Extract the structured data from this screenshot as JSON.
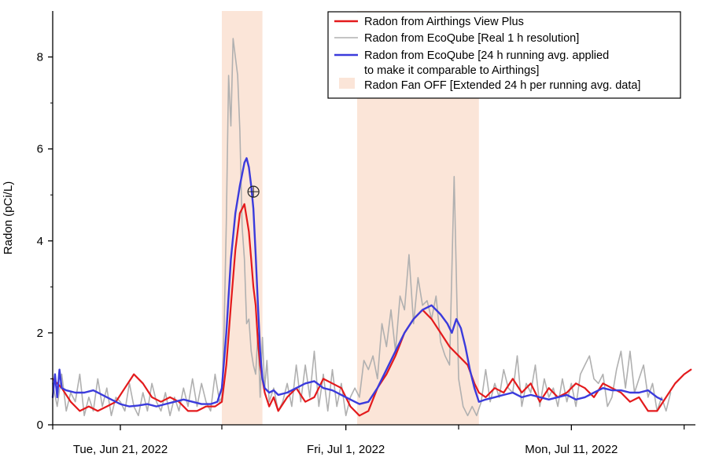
{
  "chart_data": {
    "type": "line",
    "title": "",
    "ylabel": "Radon (pCi/L)",
    "xlabel": "",
    "ylim": [
      0,
      9
    ],
    "xlim": [
      -3,
      25.5
    ],
    "x_unit": "days since Jun 21, 2022",
    "yticks": [
      0,
      2,
      4,
      6,
      8
    ],
    "xticks_major": [
      {
        "day": 0,
        "label": "Tue, Jun 21, 2022"
      },
      {
        "day": 10,
        "label": "Fri, Jul 1, 2022"
      },
      {
        "day": 20,
        "label": "Mon, Jul 11, 2022"
      }
    ],
    "xticks_minor": [
      -3,
      4.5,
      15,
      25
    ],
    "shaded_regions": [
      {
        "name": "Radon Fan OFF",
        "x_start": 4.5,
        "x_end": 6.3
      },
      {
        "name": "Radon Fan OFF",
        "x_start": 10.5,
        "x_end": 15.9
      }
    ],
    "annotation": {
      "marker": "crosshair-circle",
      "x": 5.9,
      "y": 5.07
    },
    "legend": {
      "position": "top-right",
      "entries": [
        {
          "label": "Radon from Airthings View Plus",
          "kind": "line",
          "color": "#e31a1c"
        },
        {
          "label": "Radon from EcoQube [Real 1 h resolution]",
          "kind": "line",
          "color": "#b0b0b0"
        },
        {
          "label": "Radon from EcoQube [24 h running avg. applied",
          "label2": "to make it comparable to Airthings]",
          "kind": "line",
          "color": "#3b3bdc"
        },
        {
          "label": "Radon Fan OFF [Extended 24 h per running avg. data]",
          "kind": "patch",
          "color": "#fbe5d8"
        }
      ]
    },
    "series": [
      {
        "name": "Radon from EcoQube [Real 1 h resolution]",
        "color": "#b0b0b0",
        "x": [
          -3.0,
          -2.8,
          -2.6,
          -2.4,
          -2.2,
          -2.0,
          -1.8,
          -1.6,
          -1.4,
          -1.2,
          -1.0,
          -0.8,
          -0.6,
          -0.4,
          -0.2,
          0.0,
          0.2,
          0.4,
          0.6,
          0.8,
          1.0,
          1.2,
          1.4,
          1.6,
          1.8,
          2.0,
          2.2,
          2.4,
          2.6,
          2.8,
          3.0,
          3.2,
          3.4,
          3.6,
          3.8,
          4.0,
          4.2,
          4.4,
          4.5,
          4.6,
          4.7,
          4.8,
          4.9,
          5.0,
          5.1,
          5.2,
          5.3,
          5.4,
          5.5,
          5.6,
          5.7,
          5.8,
          5.9,
          6.0,
          6.1,
          6.2,
          6.3,
          6.4,
          6.5,
          6.6,
          6.8,
          7.0,
          7.2,
          7.4,
          7.6,
          7.8,
          8.0,
          8.2,
          8.4,
          8.6,
          8.8,
          9.0,
          9.2,
          9.4,
          9.6,
          9.8,
          10.0,
          10.2,
          10.4,
          10.6,
          10.8,
          11.0,
          11.2,
          11.4,
          11.6,
          11.8,
          12.0,
          12.2,
          12.4,
          12.6,
          12.8,
          13.0,
          13.2,
          13.4,
          13.6,
          13.8,
          14.0,
          14.2,
          14.4,
          14.6,
          14.8,
          15.0,
          15.2,
          15.4,
          15.6,
          15.8,
          16.0,
          16.2,
          16.4,
          16.6,
          16.8,
          17.0,
          17.2,
          17.4,
          17.6,
          17.8,
          18.0,
          18.2,
          18.4,
          18.6,
          18.8,
          19.0,
          19.2,
          19.4,
          19.6,
          19.8,
          20.0,
          20.2,
          20.4,
          20.6,
          20.8,
          21.0,
          21.2,
          21.4,
          21.6,
          21.8,
          22.0,
          22.2,
          22.4,
          22.6,
          22.8,
          23.0,
          23.2,
          23.4,
          23.6,
          23.8,
          24.0,
          24.2,
          24.4
        ],
        "values": [
          0.9,
          0.4,
          1.1,
          0.3,
          0.7,
          0.5,
          1.1,
          0.2,
          0.6,
          0.3,
          1.0,
          0.4,
          0.8,
          0.2,
          0.6,
          0.5,
          0.3,
          0.9,
          0.4,
          0.2,
          0.7,
          0.3,
          0.9,
          0.5,
          0.3,
          0.7,
          0.2,
          0.6,
          0.3,
          0.8,
          0.4,
          1.0,
          0.4,
          0.9,
          0.5,
          0.3,
          1.1,
          0.5,
          0.6,
          2.1,
          4.4,
          7.6,
          6.5,
          8.4,
          8.0,
          7.6,
          6.4,
          4.3,
          3.6,
          2.2,
          2.3,
          1.6,
          1.3,
          1.1,
          2.0,
          0.6,
          1.9,
          0.8,
          1.4,
          0.5,
          0.8,
          0.3,
          0.5,
          0.9,
          0.4,
          1.3,
          0.5,
          1.3,
          0.6,
          1.6,
          0.4,
          1.1,
          0.3,
          1.2,
          0.4,
          0.9,
          0.2,
          0.6,
          0.8,
          0.6,
          1.4,
          1.2,
          1.5,
          1.0,
          2.2,
          1.7,
          2.5,
          1.6,
          2.8,
          2.5,
          3.7,
          2.2,
          3.2,
          2.6,
          2.7,
          2.3,
          2.8,
          1.8,
          1.5,
          1.3,
          5.4,
          1.0,
          0.4,
          0.2,
          0.4,
          0.2,
          0.5,
          1.2,
          0.5,
          0.9,
          0.6,
          1.2,
          0.8,
          0.7,
          1.5,
          0.4,
          0.9,
          0.7,
          1.3,
          0.4,
          1.0,
          0.6,
          0.8,
          0.4,
          1.0,
          0.5,
          0.9,
          0.4,
          1.1,
          1.3,
          1.5,
          1.0,
          0.9,
          1.1,
          0.4,
          0.6,
          1.2,
          1.6,
          0.8,
          1.6,
          0.7,
          1.0,
          1.3,
          0.6,
          0.9,
          0.3,
          0.6,
          0.3,
          0.7
        ]
      },
      {
        "name": "Radon from Airthings View Plus",
        "color": "#e31a1c",
        "x": [
          -3.0,
          -2.6,
          -2.2,
          -1.8,
          -1.4,
          -1.0,
          -0.6,
          -0.2,
          0.2,
          0.6,
          1.0,
          1.4,
          1.8,
          2.2,
          2.6,
          3.0,
          3.4,
          3.8,
          4.2,
          4.5,
          4.7,
          4.9,
          5.1,
          5.3,
          5.5,
          5.7,
          5.8,
          5.9,
          6.0,
          6.1,
          6.2,
          6.3,
          6.4,
          6.6,
          6.8,
          7.0,
          7.4,
          7.8,
          8.2,
          8.6,
          9.0,
          9.4,
          9.8,
          10.2,
          10.6,
          11.0,
          11.4,
          11.8,
          12.2,
          12.6,
          13.0,
          13.4,
          13.8,
          14.2,
          14.6,
          15.0,
          15.4,
          15.7,
          15.9,
          16.2,
          16.6,
          17.0,
          17.4,
          17.8,
          18.2,
          18.6,
          19.0,
          19.4,
          19.8,
          20.2,
          20.6,
          21.0,
          21.4,
          21.8,
          22.2,
          22.6,
          23.0,
          23.4,
          23.8,
          24.2,
          24.6,
          25.0,
          25.3
        ],
        "values": [
          1.0,
          0.8,
          0.5,
          0.3,
          0.4,
          0.3,
          0.4,
          0.5,
          0.8,
          1.1,
          0.9,
          0.6,
          0.5,
          0.6,
          0.5,
          0.3,
          0.3,
          0.4,
          0.4,
          0.5,
          1.3,
          2.6,
          3.8,
          4.6,
          4.8,
          4.2,
          3.6,
          3.0,
          2.6,
          1.8,
          1.3,
          1.0,
          0.7,
          0.4,
          0.6,
          0.3,
          0.6,
          0.8,
          0.5,
          0.6,
          1.0,
          0.9,
          0.8,
          0.4,
          0.2,
          0.3,
          0.8,
          1.1,
          1.5,
          2.0,
          2.3,
          2.5,
          2.3,
          2.0,
          1.7,
          1.5,
          1.3,
          0.9,
          0.7,
          0.6,
          0.8,
          0.7,
          1.0,
          0.7,
          0.9,
          0.5,
          0.8,
          0.6,
          0.7,
          0.9,
          0.8,
          0.6,
          0.9,
          0.8,
          0.7,
          0.5,
          0.6,
          0.3,
          0.3,
          0.6,
          0.9,
          1.1,
          1.2
        ]
      },
      {
        "name": "Radon from EcoQube [24 h running avg. applied to make it comparable to Airthings]",
        "color": "#3b3bdc",
        "x": [
          -3.0,
          -2.9,
          -2.8,
          -2.7,
          -2.6,
          -2.4,
          -2.0,
          -1.6,
          -1.2,
          -0.8,
          -0.4,
          0.0,
          0.4,
          0.8,
          1.2,
          1.6,
          2.0,
          2.4,
          2.8,
          3.2,
          3.6,
          4.0,
          4.3,
          4.5,
          4.7,
          4.9,
          5.1,
          5.3,
          5.5,
          5.6,
          5.7,
          5.8,
          5.9,
          6.0,
          6.1,
          6.2,
          6.3,
          6.4,
          6.6,
          6.8,
          7.0,
          7.4,
          7.8,
          8.2,
          8.6,
          9.0,
          9.4,
          9.8,
          10.2,
          10.6,
          11.0,
          11.4,
          11.8,
          12.2,
          12.6,
          13.0,
          13.4,
          13.8,
          14.2,
          14.5,
          14.7,
          14.9,
          15.1,
          15.3,
          15.5,
          15.7,
          15.9,
          16.2,
          16.6,
          17.0,
          17.4,
          17.8,
          18.2,
          18.6,
          19.0,
          19.4,
          19.8,
          20.2,
          20.6,
          21.0,
          21.4,
          21.8,
          22.2,
          22.6,
          23.0,
          23.4,
          23.8,
          24.0
        ],
        "values": [
          0.6,
          1.1,
          0.6,
          1.2,
          0.8,
          0.75,
          0.7,
          0.7,
          0.75,
          0.65,
          0.55,
          0.45,
          0.4,
          0.42,
          0.45,
          0.4,
          0.45,
          0.5,
          0.55,
          0.5,
          0.45,
          0.45,
          0.5,
          0.8,
          2.0,
          3.6,
          4.6,
          5.2,
          5.7,
          5.8,
          5.6,
          5.2,
          4.7,
          3.7,
          2.6,
          1.6,
          1.0,
          0.8,
          0.7,
          0.75,
          0.65,
          0.7,
          0.8,
          0.9,
          0.95,
          0.8,
          0.75,
          0.65,
          0.55,
          0.45,
          0.5,
          0.8,
          1.2,
          1.6,
          2.0,
          2.3,
          2.5,
          2.6,
          2.4,
          2.2,
          2.0,
          2.3,
          2.1,
          1.7,
          1.2,
          0.8,
          0.5,
          0.55,
          0.6,
          0.65,
          0.7,
          0.6,
          0.65,
          0.6,
          0.55,
          0.6,
          0.65,
          0.55,
          0.6,
          0.7,
          0.8,
          0.75,
          0.75,
          0.7,
          0.7,
          0.75,
          0.6,
          0.55
        ]
      }
    ]
  }
}
